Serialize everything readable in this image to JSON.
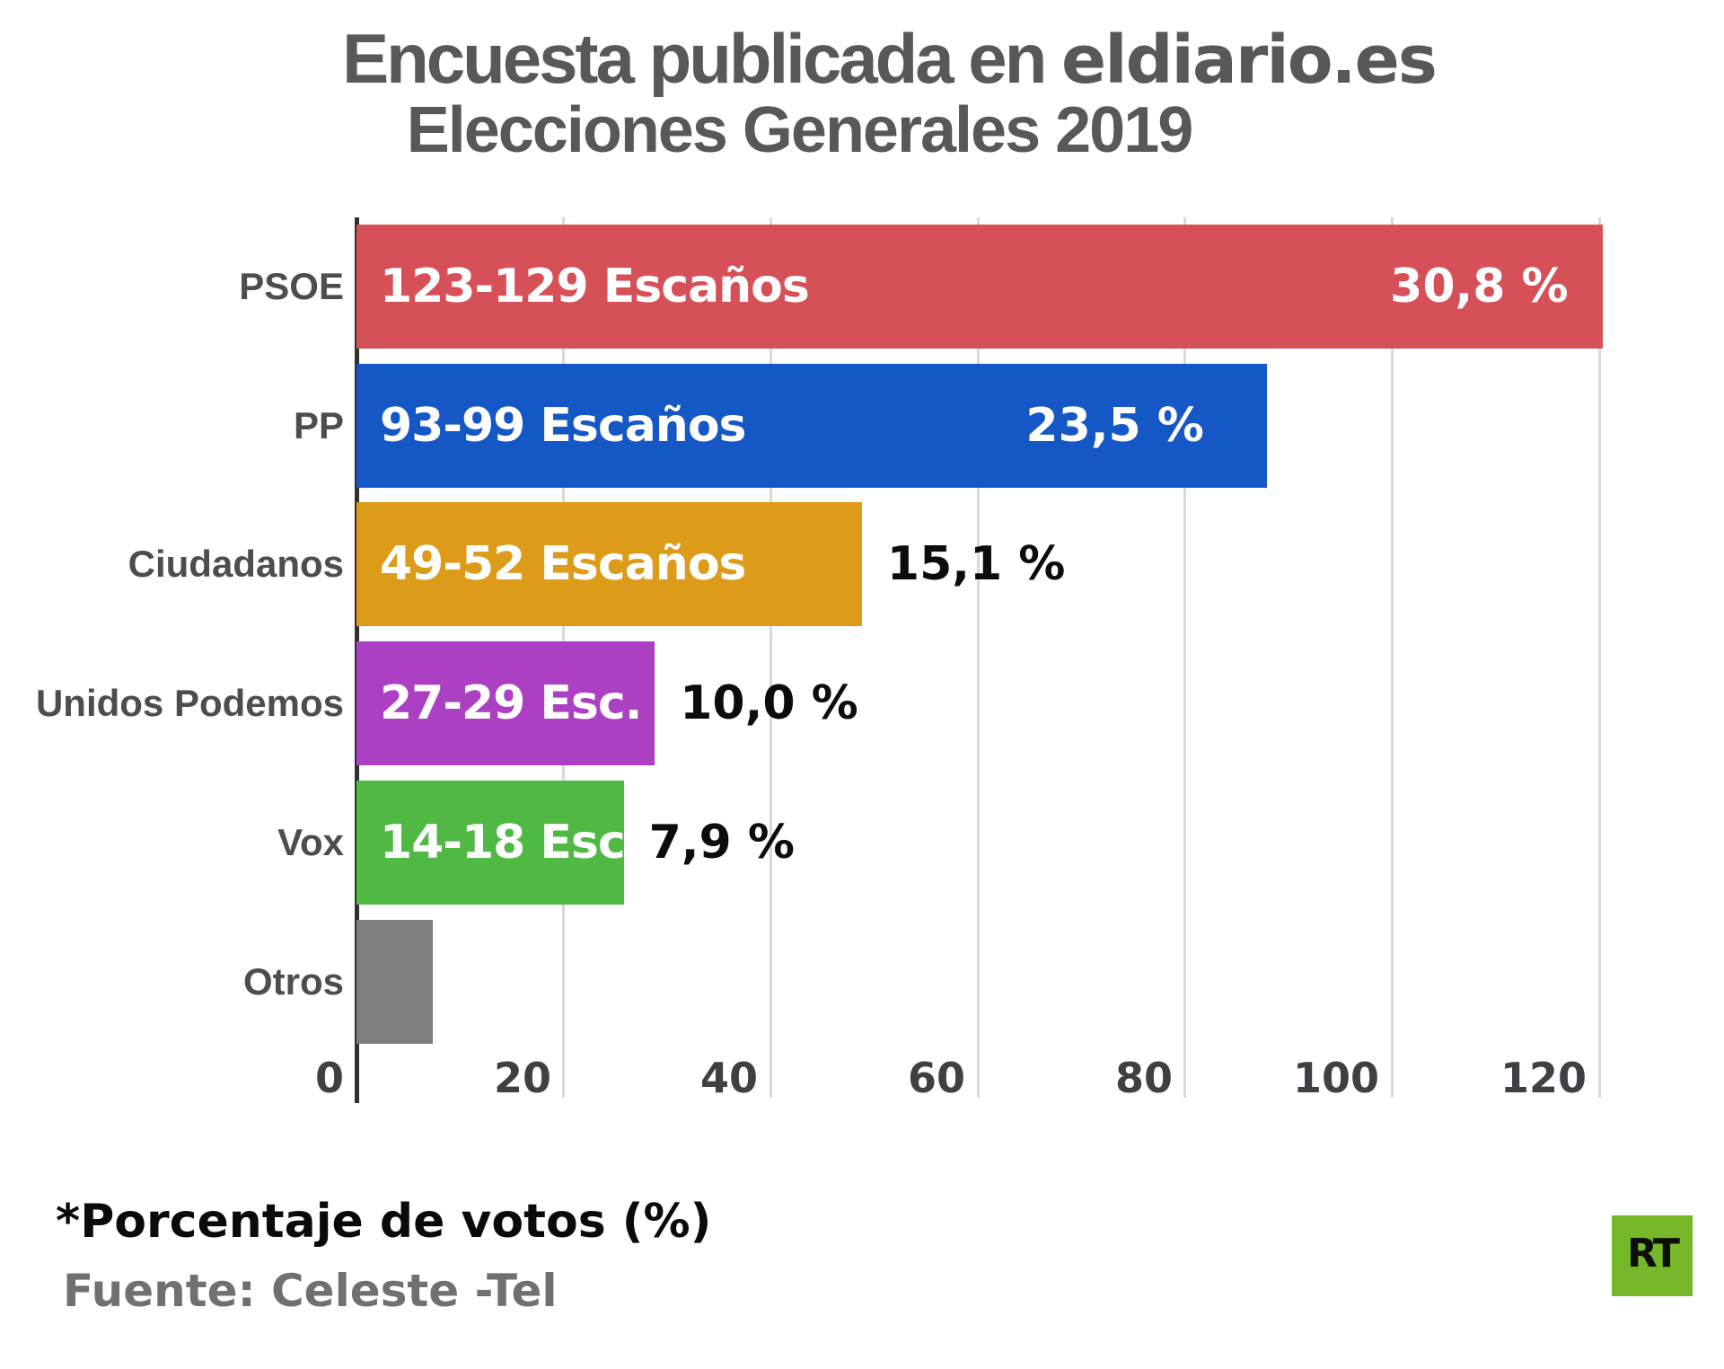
{
  "header": {
    "title_part1": "Encuesta publicada en ",
    "title_brand": "eldiario.es",
    "subtitle": "Elecciones Generales 2019"
  },
  "chart_data": {
    "type": "bar",
    "orientation": "horizontal",
    "title": "Encuesta publicada en eldiario.es",
    "subtitle": "Elecciones Generales 2019",
    "xlabel": "",
    "ylabel": "",
    "grid": true,
    "x_ticks": [
      0,
      20,
      40,
      60,
      80,
      100,
      120
    ],
    "xlim": [
      0,
      126.3
    ],
    "categories": [
      "PSOE",
      "PP",
      "Ciudadanos",
      "Unidos Podemos",
      "Vox",
      "Otros"
    ],
    "rows": [
      {
        "party": "PSOE",
        "seats_label": "123-129 Escaños",
        "seats_min": 123,
        "seats_max": 129,
        "pct_label": "30,8 %",
        "pct_value": 30.8,
        "bar_units": 120.3,
        "color": "#d65057",
        "pct_inside": true
      },
      {
        "party": "PP",
        "seats_label": "93-99 Escaños",
        "seats_min": 93,
        "seats_max": 99,
        "pct_label": "23,5 %",
        "pct_value": 23.5,
        "bar_units": 87.9,
        "color": "#1557c5",
        "pct_inside": true
      },
      {
        "party": "Ciudadanos",
        "seats_label": "49-52 Escaños",
        "seats_min": 49,
        "seats_max": 52,
        "pct_label": "15,1 %",
        "pct_value": 15.1,
        "bar_units": 48.8,
        "color": "#dc9b18",
        "pct_inside": false
      },
      {
        "party": "Unidos Podemos",
        "seats_label": "27-29 Esc.",
        "seats_min": 27,
        "seats_max": 29,
        "pct_label": "10,0 %",
        "pct_value": 10.0,
        "bar_units": 28.8,
        "color": "#ac40c2",
        "pct_inside": false
      },
      {
        "party": "Vox",
        "seats_label": "14-18 Esc.",
        "seats_min": 14,
        "seats_max": 18,
        "pct_label": "7,9 %",
        "pct_value": 7.9,
        "bar_units": 25.8,
        "color": "#4fb944",
        "pct_inside": false
      },
      {
        "party": "Otros",
        "seats_label": "",
        "pct_label": "",
        "bar_units": 7.4,
        "color": "#7e7e7e",
        "pct_inside": false
      }
    ]
  },
  "footer": {
    "note": "*Porcentaje de votos (%)",
    "source": "Fuente: Celeste -Tel"
  },
  "logo": {
    "text": "RT",
    "bg_color": "#76b82a"
  }
}
